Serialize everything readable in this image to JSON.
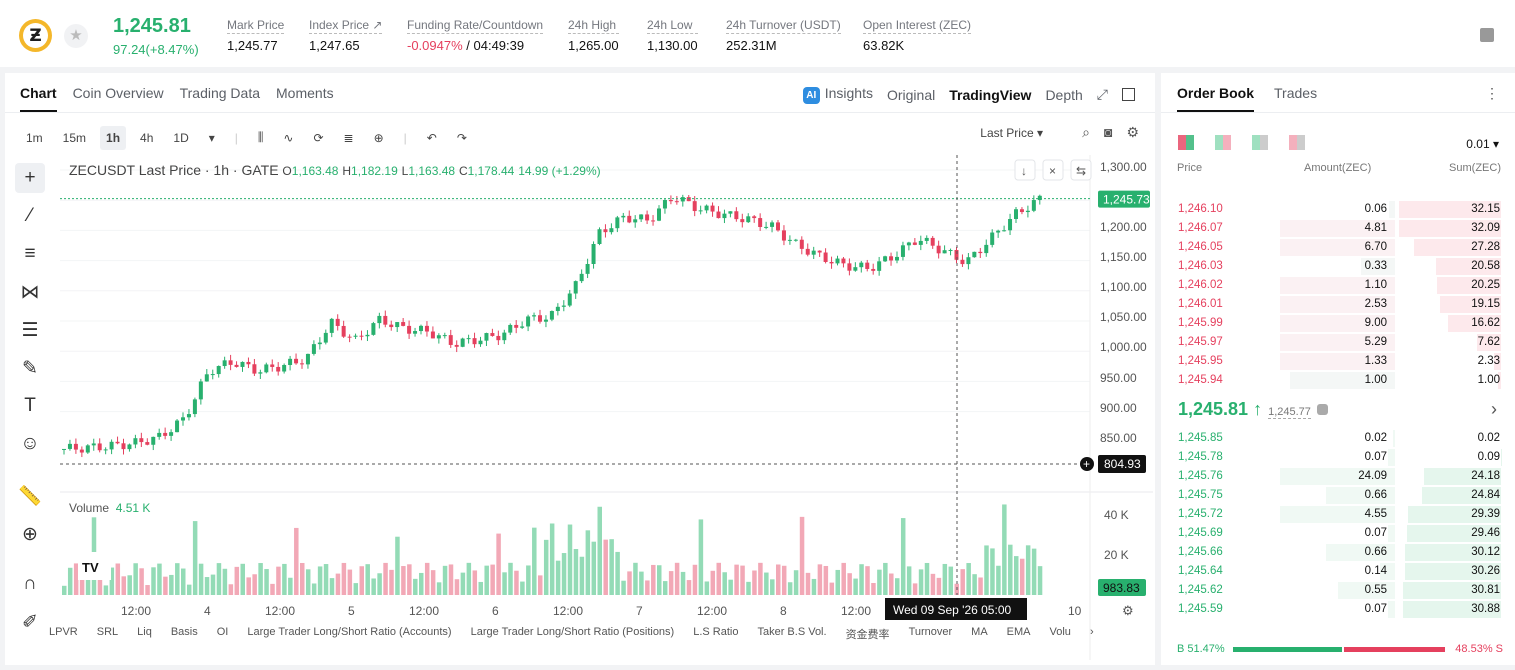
{
  "header": {
    "last_price": "1,245.81",
    "change": "97.24(+8.47%)",
    "stats": [
      {
        "label": "Mark Price",
        "value": "1,245.77"
      },
      {
        "label": "Index Price ↗",
        "value": "1,247.65"
      },
      {
        "label": "Funding Rate/Countdown",
        "value_red": "-0.0947%",
        "value": " / 04:49:39"
      },
      {
        "label": "24h High",
        "value": "1,265.00"
      },
      {
        "label": "24h Low",
        "value": "1,130.00"
      },
      {
        "label": "24h Turnover (USDT)",
        "value": "252.31M"
      },
      {
        "label": "Open Interest (ZEC)",
        "value": "63.82K"
      }
    ]
  },
  "chart_tabs": {
    "chart": "Chart",
    "coin": "Coin Overview",
    "trading": "Trading Data",
    "moments": "Moments"
  },
  "view_tabs": {
    "insights": "Insights",
    "original": "Original",
    "tradingview": "TradingView",
    "depth": "Depth"
  },
  "timeframes": [
    "1m",
    "15m",
    "1h",
    "4h",
    "1D"
  ],
  "last_price_select": "Last Price ▾",
  "ohlc": {
    "symbol": "ZECUSDT Last Price · 1h · GATE",
    "o": "1,163.48",
    "h": "1,182.19",
    "l": "1,163.48",
    "c": "1,178.44",
    "chg": "14.99 (+1.29%)"
  },
  "volume": {
    "label": "Volume",
    "value": "4.51 K"
  },
  "price_axis": [
    "1,300.00",
    "1,200.00",
    "1,150.00",
    "1,100.00",
    "1,050.00",
    "1,000.00",
    "950.00",
    "900.00",
    "850.00"
  ],
  "vol_axis": [
    "40 K",
    "20 K"
  ],
  "price_tag": "1,245.73",
  "cursor_tag": "804.93",
  "vol_tag": "983.83",
  "time_axis": [
    "12:00",
    "4",
    "12:00",
    "5",
    "12:00",
    "6",
    "12:00",
    "7",
    "12:00",
    "8",
    "12:00",
    "10"
  ],
  "crosshair_time": "Wed 09 Sep '26   05:00",
  "indicators": [
    "LPVR",
    "SRL",
    "Liq",
    "Basis",
    "OI",
    "Large Trader Long/Short Ratio (Accounts)",
    "Large Trader Long/Short Ratio (Positions)",
    "L.S Ratio",
    "Taker B.S Vol.",
    "资金费率",
    "Turnover",
    "MA",
    "EMA",
    "Volu"
  ],
  "orderbook": {
    "tabs": {
      "book": "Order Book",
      "trades": "Trades"
    },
    "precision": "0.01 ▾",
    "cols": {
      "price": "Price",
      "amount": "Amount(ZEC)",
      "sum": "Sum(ZEC)"
    },
    "asks": [
      [
        "1,246.10",
        "0.06",
        "32.15"
      ],
      [
        "1,246.07",
        "4.81",
        "32.09"
      ],
      [
        "1,246.05",
        "6.70",
        "27.28"
      ],
      [
        "1,246.03",
        "0.33",
        "20.58"
      ],
      [
        "1,246.02",
        "1.10",
        "20.25"
      ],
      [
        "1,246.01",
        "2.53",
        "19.15"
      ],
      [
        "1,245.99",
        "9.00",
        "16.62"
      ],
      [
        "1,245.97",
        "5.29",
        "7.62"
      ],
      [
        "1,245.95",
        "1.33",
        "2.33"
      ],
      [
        "1,245.94",
        "1.00",
        "1.00"
      ]
    ],
    "mid": "1,245.81 ↑",
    "mark": "1,245.77",
    "bids": [
      [
        "1,245.85",
        "0.02",
        "0.02"
      ],
      [
        "1,245.78",
        "0.07",
        "0.09"
      ],
      [
        "1,245.76",
        "24.09",
        "24.18"
      ],
      [
        "1,245.75",
        "0.66",
        "24.84"
      ],
      [
        "1,245.72",
        "4.55",
        "29.39"
      ],
      [
        "1,245.69",
        "0.07",
        "29.46"
      ],
      [
        "1,245.66",
        "0.66",
        "30.12"
      ],
      [
        "1,245.64",
        "0.14",
        "30.26"
      ],
      [
        "1,245.62",
        "0.55",
        "30.81"
      ],
      [
        "1,245.59",
        "0.07",
        "30.88"
      ]
    ],
    "buy_ratio": "B 51.47%",
    "sell_ratio": "48.53% S",
    "buy_fraction": 0.5147
  },
  "colors": {
    "up": "#28b06e",
    "down": "#e5405e"
  }
}
